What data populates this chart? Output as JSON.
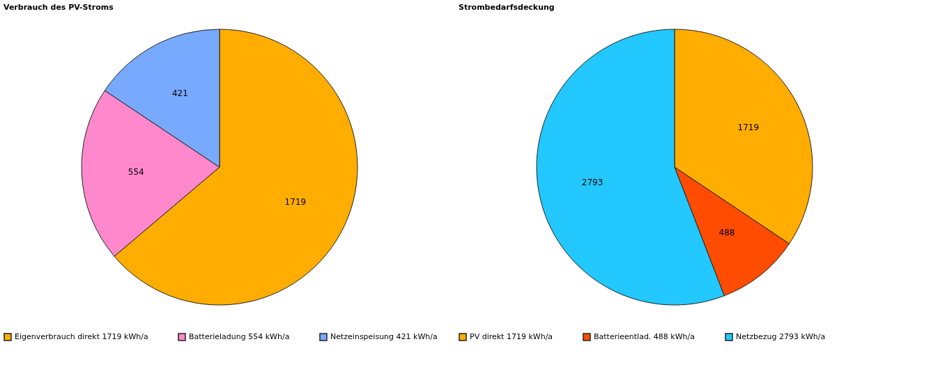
{
  "chart_data": [
    {
      "type": "pie",
      "title": "Verbrauch des PV-Stroms",
      "categories": [
        "Eigenverbrauch direkt 1719 kWh/a",
        "Batterieladung 554 kWh/a",
        "Netzeinspeisung 421 kWh/a"
      ],
      "values": [
        1719,
        554,
        421
      ],
      "colors": [
        "#ffad00",
        "#ff88cc",
        "#77aaff"
      ],
      "data_labels": true,
      "legend": "bottom"
    },
    {
      "type": "pie",
      "title": "Strombedarfsdeckung",
      "categories": [
        "PV direkt 1719 kWh/a",
        "Batterieentlad. 488 kWh/a",
        "Netzbezug 2793 kWh/a"
      ],
      "values": [
        1719,
        488,
        2793
      ],
      "colors": [
        "#ffad00",
        "#ff4c00",
        "#22c8ff"
      ],
      "data_labels": true,
      "legend": "bottom"
    }
  ]
}
